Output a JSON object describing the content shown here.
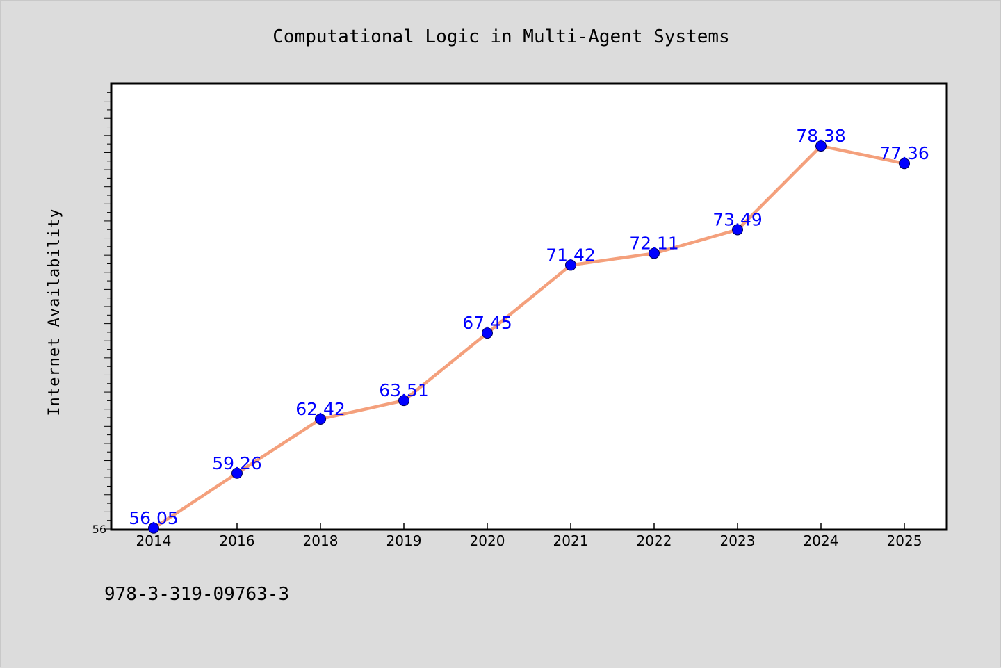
{
  "chart_data": {
    "type": "line",
    "title": "Computational Logic in Multi-Agent Systems",
    "xlabel": "",
    "ylabel": "Internet Availability",
    "categories": [
      "2014",
      "2016",
      "2018",
      "2019",
      "2020",
      "2021",
      "2022",
      "2023",
      "2024",
      "2025"
    ],
    "series": [
      {
        "values": [
          56.05,
          59.26,
          62.42,
          63.51,
          67.45,
          71.42,
          72.11,
          73.49,
          78.38,
          77.36
        ]
      }
    ],
    "data_labels": [
      "56.05",
      "59.26",
      "62.42",
      "63.51",
      "67.45",
      "71.42",
      "72.11",
      "73.49",
      "78.38",
      "77.36"
    ],
    "y_tick_labels": [
      "56"
    ],
    "ylim": [
      56,
      82
    ],
    "grid": false,
    "legend": "none",
    "colors": {
      "line": "#f4a07c",
      "marker": "#0000ff",
      "data_label": "#0000ff",
      "background": "#dcdcdc",
      "plot_background": "#ffffff"
    },
    "footnote": "978-3-319-09763-3"
  }
}
